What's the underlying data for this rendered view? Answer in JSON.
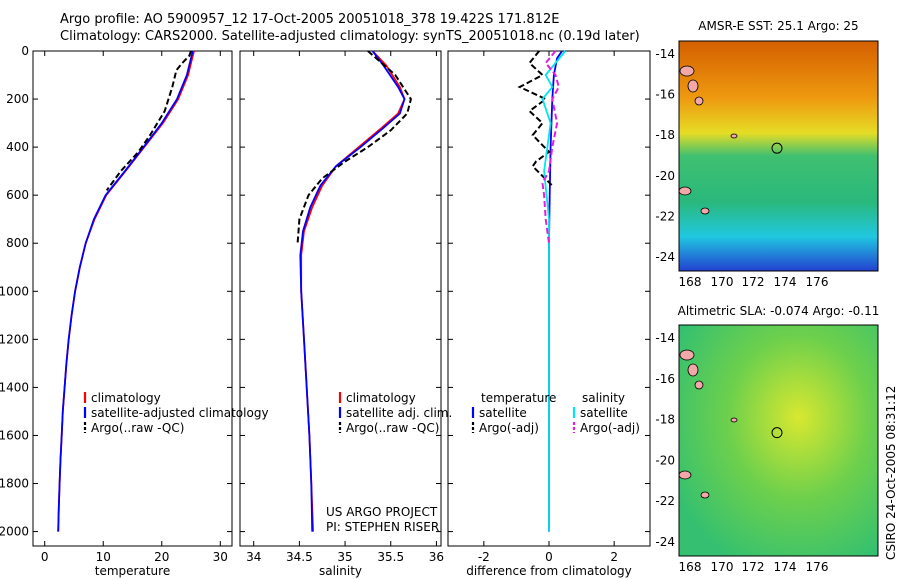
{
  "title_line1": "Argo profile: AO 5900957_12 17-Oct-2005 20051018_378 19.422S 171.812E",
  "title_line2": "Climatology: CARS2000. Satellite-adjusted climatology: synTS_20051018.nc (0.19d later)",
  "side_label": "CSIRO 24-Oct-2005 08:31:12",
  "colors": {
    "clim": "#ff0000",
    "sat": "#0000ff",
    "argo": "#000000",
    "sal_sat": "#00e5ee",
    "sal_argo": "#e020e0"
  },
  "chart_data": [
    {
      "type": "line",
      "id": "temperature",
      "xlabel": "temperature",
      "xlim": [
        -2,
        32
      ],
      "xticks": [
        0,
        10,
        20,
        30
      ],
      "xtick_labels": [
        "0",
        "10",
        "20",
        "30"
      ],
      "ylim": [
        2060,
        0
      ],
      "yticks": [
        0,
        200,
        400,
        600,
        800,
        1000,
        1200,
        1400,
        1600,
        1800,
        2000
      ],
      "ytick_labels": [
        "0",
        "200",
        "400",
        "600",
        "800",
        "1000",
        "1200",
        "1400",
        "1600",
        "1800",
        "2000"
      ],
      "series": [
        {
          "name": "climatology",
          "color": "#ff0000",
          "dash": false,
          "points": [
            [
              25.5,
              0
            ],
            [
              25.2,
              30
            ],
            [
              24.5,
              100
            ],
            [
              22.8,
              200
            ],
            [
              20.2,
              300
            ],
            [
              17,
              400
            ],
            [
              13.8,
              500
            ],
            [
              10.5,
              600
            ],
            [
              8.5,
              700
            ],
            [
              7,
              800
            ],
            [
              6,
              900
            ],
            [
              5.2,
              1000
            ],
            [
              4.6,
              1100
            ],
            [
              4.1,
              1200
            ],
            [
              3.7,
              1300
            ],
            [
              3.4,
              1400
            ],
            [
              3.1,
              1500
            ],
            [
              2.9,
              1600
            ],
            [
              2.7,
              1700
            ],
            [
              2.55,
              1800
            ],
            [
              2.4,
              1900
            ],
            [
              2.3,
              2000
            ]
          ]
        },
        {
          "name": "satellite-adjusted climatology",
          "color": "#0000ff",
          "dash": false,
          "points": [
            [
              25.3,
              0
            ],
            [
              25,
              30
            ],
            [
              24.3,
              100
            ],
            [
              22.6,
              200
            ],
            [
              20,
              300
            ],
            [
              16.9,
              400
            ],
            [
              13.7,
              500
            ],
            [
              10.4,
              600
            ],
            [
              8.4,
              700
            ],
            [
              7,
              800
            ],
            [
              6,
              900
            ],
            [
              5.2,
              1000
            ],
            [
              4.6,
              1100
            ],
            [
              4.1,
              1200
            ],
            [
              3.7,
              1300
            ],
            [
              3.4,
              1400
            ],
            [
              3.1,
              1500
            ],
            [
              2.9,
              1600
            ],
            [
              2.7,
              1700
            ],
            [
              2.55,
              1800
            ],
            [
              2.4,
              1900
            ],
            [
              2.3,
              2000
            ]
          ]
        },
        {
          "name": "Argo(..raw -QC)",
          "color": "#000000",
          "dash": true,
          "points": [
            [
              25,
              0
            ],
            [
              24.7,
              20
            ],
            [
              23.5,
              50
            ],
            [
              22.5,
              80
            ],
            [
              21.8,
              150
            ],
            [
              20.5,
              250
            ],
            [
              18,
              350
            ],
            [
              16,
              420
            ],
            [
              13,
              500
            ],
            [
              10.6,
              580
            ]
          ]
        }
      ],
      "legend": [
        "climatology",
        "satellite-adjusted climatology",
        "Argo(..raw -QC)"
      ]
    },
    {
      "type": "line",
      "id": "salinity",
      "xlabel": "salinity",
      "xlim": [
        33.85,
        36.05
      ],
      "xticks": [
        34,
        34.5,
        35,
        35.5,
        36
      ],
      "xtick_labels": [
        "34",
        "34.5",
        "35",
        "35.5",
        "36"
      ],
      "ylim": [
        2060,
        0
      ],
      "series": [
        {
          "name": "climatology",
          "color": "#ff0000",
          "dash": false,
          "points": [
            [
              35.3,
              0
            ],
            [
              35.45,
              60
            ],
            [
              35.6,
              150
            ],
            [
              35.65,
              200
            ],
            [
              35.58,
              260
            ],
            [
              35.4,
              320
            ],
            [
              35.15,
              400
            ],
            [
              34.9,
              480
            ],
            [
              34.75,
              560
            ],
            [
              34.64,
              650
            ],
            [
              34.55,
              750
            ],
            [
              34.52,
              850
            ],
            [
              34.52,
              1000
            ],
            [
              34.55,
              1200
            ],
            [
              34.58,
              1400
            ],
            [
              34.61,
              1600
            ],
            [
              34.63,
              1800
            ],
            [
              34.65,
              2000
            ]
          ]
        },
        {
          "name": "satellite adj. clim.",
          "color": "#0000ff",
          "dash": false,
          "points": [
            [
              35.3,
              0
            ],
            [
              35.42,
              60
            ],
            [
              35.58,
              150
            ],
            [
              35.65,
              200
            ],
            [
              35.6,
              260
            ],
            [
              35.42,
              320
            ],
            [
              35.17,
              400
            ],
            [
              34.9,
              480
            ],
            [
              34.73,
              560
            ],
            [
              34.62,
              650
            ],
            [
              34.54,
              750
            ],
            [
              34.51,
              850
            ],
            [
              34.52,
              1000
            ],
            [
              34.55,
              1200
            ],
            [
              34.58,
              1400
            ],
            [
              34.61,
              1600
            ],
            [
              34.63,
              1800
            ],
            [
              34.64,
              2000
            ]
          ]
        },
        {
          "name": "Argo(..raw -QC)",
          "color": "#000000",
          "dash": true,
          "points": [
            [
              35.25,
              0
            ],
            [
              35.4,
              50
            ],
            [
              35.55,
              100
            ],
            [
              35.72,
              200
            ],
            [
              35.68,
              260
            ],
            [
              35.5,
              330
            ],
            [
              35.25,
              400
            ],
            [
              35,
              460
            ],
            [
              34.75,
              530
            ],
            [
              34.6,
              600
            ],
            [
              34.5,
              700
            ],
            [
              34.48,
              800
            ]
          ]
        }
      ],
      "legend": [
        "climatology",
        "satellite adj. clim.",
        "Argo(..raw -QC)"
      ]
    },
    {
      "type": "line",
      "id": "difference",
      "xlabel": "difference from climatology",
      "xlim": [
        -3.1,
        3.1
      ],
      "xticks": [
        -2,
        0,
        2
      ],
      "xtick_labels": [
        "-2",
        "0",
        "2"
      ],
      "ylim": [
        2060,
        0
      ],
      "series": [
        {
          "name": "satellite (temperature)",
          "color": "#0000ff",
          "dash": false,
          "points": [
            [
              0.4,
              0
            ],
            [
              0.25,
              30
            ],
            [
              0.15,
              100
            ],
            [
              0.1,
              200
            ],
            [
              0.05,
              400
            ],
            [
              0.02,
              600
            ],
            [
              0,
              800
            ],
            [
              0,
              2000
            ]
          ]
        },
        {
          "name": "Argo(-adj) (temperature)",
          "color": "#000000",
          "dash": true,
          "points": [
            [
              -0.3,
              0
            ],
            [
              -0.6,
              50
            ],
            [
              -0.2,
              100
            ],
            [
              -0.9,
              150
            ],
            [
              -0.1,
              200
            ],
            [
              -0.6,
              250
            ],
            [
              -0.2,
              300
            ],
            [
              -0.5,
              350
            ],
            [
              0,
              420
            ],
            [
              -0.4,
              460
            ],
            [
              -0.5,
              480
            ],
            [
              -0.2,
              520
            ],
            [
              0.1,
              560
            ]
          ]
        },
        {
          "name": "satellite (salinity)",
          "color": "#00e5ee",
          "dash": false,
          "points": [
            [
              0.5,
              0
            ],
            [
              0.2,
              50
            ],
            [
              -0.1,
              100
            ],
            [
              0.1,
              150
            ],
            [
              -0.2,
              200
            ],
            [
              0.05,
              300
            ],
            [
              0,
              350
            ],
            [
              -0.15,
              500
            ],
            [
              0,
              700
            ],
            [
              0,
              2000
            ]
          ]
        },
        {
          "name": "Argo(-adj) (salinity)",
          "color": "#e020e0",
          "dash": true,
          "points": [
            [
              0.2,
              0
            ],
            [
              -0.1,
              50
            ],
            [
              0.2,
              100
            ],
            [
              0.3,
              150
            ],
            [
              0.1,
              200
            ],
            [
              0.25,
              300
            ],
            [
              0.1,
              400
            ],
            [
              0,
              500
            ],
            [
              -0.2,
              550
            ],
            [
              -0.15,
              600
            ],
            [
              -0.1,
              700
            ],
            [
              0,
              800
            ]
          ]
        }
      ],
      "legend_headers": [
        "temperature",
        "salinity"
      ],
      "legend": [
        "satellite",
        "Argo(-adj)",
        "satellite",
        "Argo(-adj)"
      ]
    },
    {
      "type": "heatmap",
      "id": "sst_map",
      "title": "AMSR-E SST: 25.1  Argo: 25",
      "xticks": [
        "168",
        "170",
        "172",
        "174",
        "176"
      ],
      "yticks": [
        "-14",
        "-16",
        "-18",
        "-20",
        "-22",
        "-24"
      ]
    },
    {
      "type": "heatmap",
      "id": "sla_map",
      "title": "Altimetric SLA: -0.074  Argo: -0.11",
      "xticks": [
        "168",
        "170",
        "172",
        "174",
        "176"
      ],
      "yticks": [
        "-14",
        "-16",
        "-18",
        "-20",
        "-22",
        "-24"
      ]
    }
  ],
  "credits": [
    "US ARGO PROJECT",
    "PI: STEPHEN RISER"
  ]
}
